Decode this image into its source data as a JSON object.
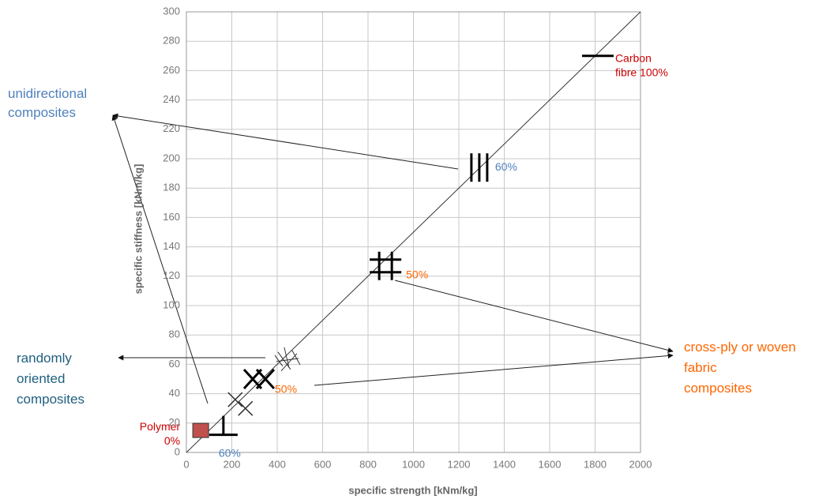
{
  "chart_data": {
    "type": "scatter",
    "x_label": "specific strength [kNm/kg]",
    "y_label": "specific stiffness [kNm/kg]",
    "xlim": [
      0,
      2000
    ],
    "ylim": [
      0,
      300
    ],
    "xticks": [
      0,
      200,
      400,
      600,
      800,
      1000,
      1200,
      1400,
      1600,
      1800,
      2000
    ],
    "yticks": [
      0,
      20,
      40,
      60,
      80,
      100,
      120,
      140,
      160,
      180,
      200,
      220,
      240,
      260,
      280,
      300
    ],
    "grid": true,
    "reference_line": {
      "x": [
        0,
        2000
      ],
      "y": [
        0,
        300
      ],
      "color": "#333333"
    },
    "points": [
      {
        "x": 63,
        "y": 15,
        "marker": "square",
        "color": "#c0504d",
        "label": [
          "Polymer",
          "0%"
        ],
        "label_color": "#cc0000"
      },
      {
        "x": 163,
        "y": 12,
        "marker": "ell",
        "color": "#000000",
        "label": [
          "60%"
        ],
        "label_color": "#4f81bd"
      },
      {
        "x": 215,
        "y": 36,
        "marker": "small-x",
        "color": "#333333"
      },
      {
        "x": 260,
        "y": 30,
        "marker": "small-x",
        "color": "#333333"
      },
      {
        "x": 320,
        "y": 50,
        "marker": "double-x",
        "color": "#000000",
        "label": [
          "50%"
        ],
        "label_color": "#ff6600"
      },
      {
        "x": 445,
        "y": 63,
        "marker": "star",
        "color": "#333333"
      },
      {
        "x": 877,
        "y": 127,
        "marker": "hash",
        "color": "#000000",
        "label": [
          "50%"
        ],
        "label_color": "#ff6600"
      },
      {
        "x": 1290,
        "y": 194,
        "marker": "triple",
        "color": "#000000",
        "label": [
          "60%"
        ],
        "label_color": "#4f81bd"
      },
      {
        "x": 1812,
        "y": 270,
        "marker": "dash",
        "color": "#000000",
        "label": [
          "Carbon",
          "fibre 100%"
        ],
        "label_color": "#cc0000"
      }
    ],
    "annotations": [
      {
        "lines": [
          "unidirectional",
          "composites"
        ],
        "color": "#4f81bd"
      },
      {
        "lines": [
          "randomly",
          "oriented",
          "composites"
        ],
        "color": "#1f5f7f"
      },
      {
        "lines": [
          "cross-ply or woven",
          "fabric",
          "composites"
        ],
        "color": "#ff6600"
      }
    ]
  }
}
